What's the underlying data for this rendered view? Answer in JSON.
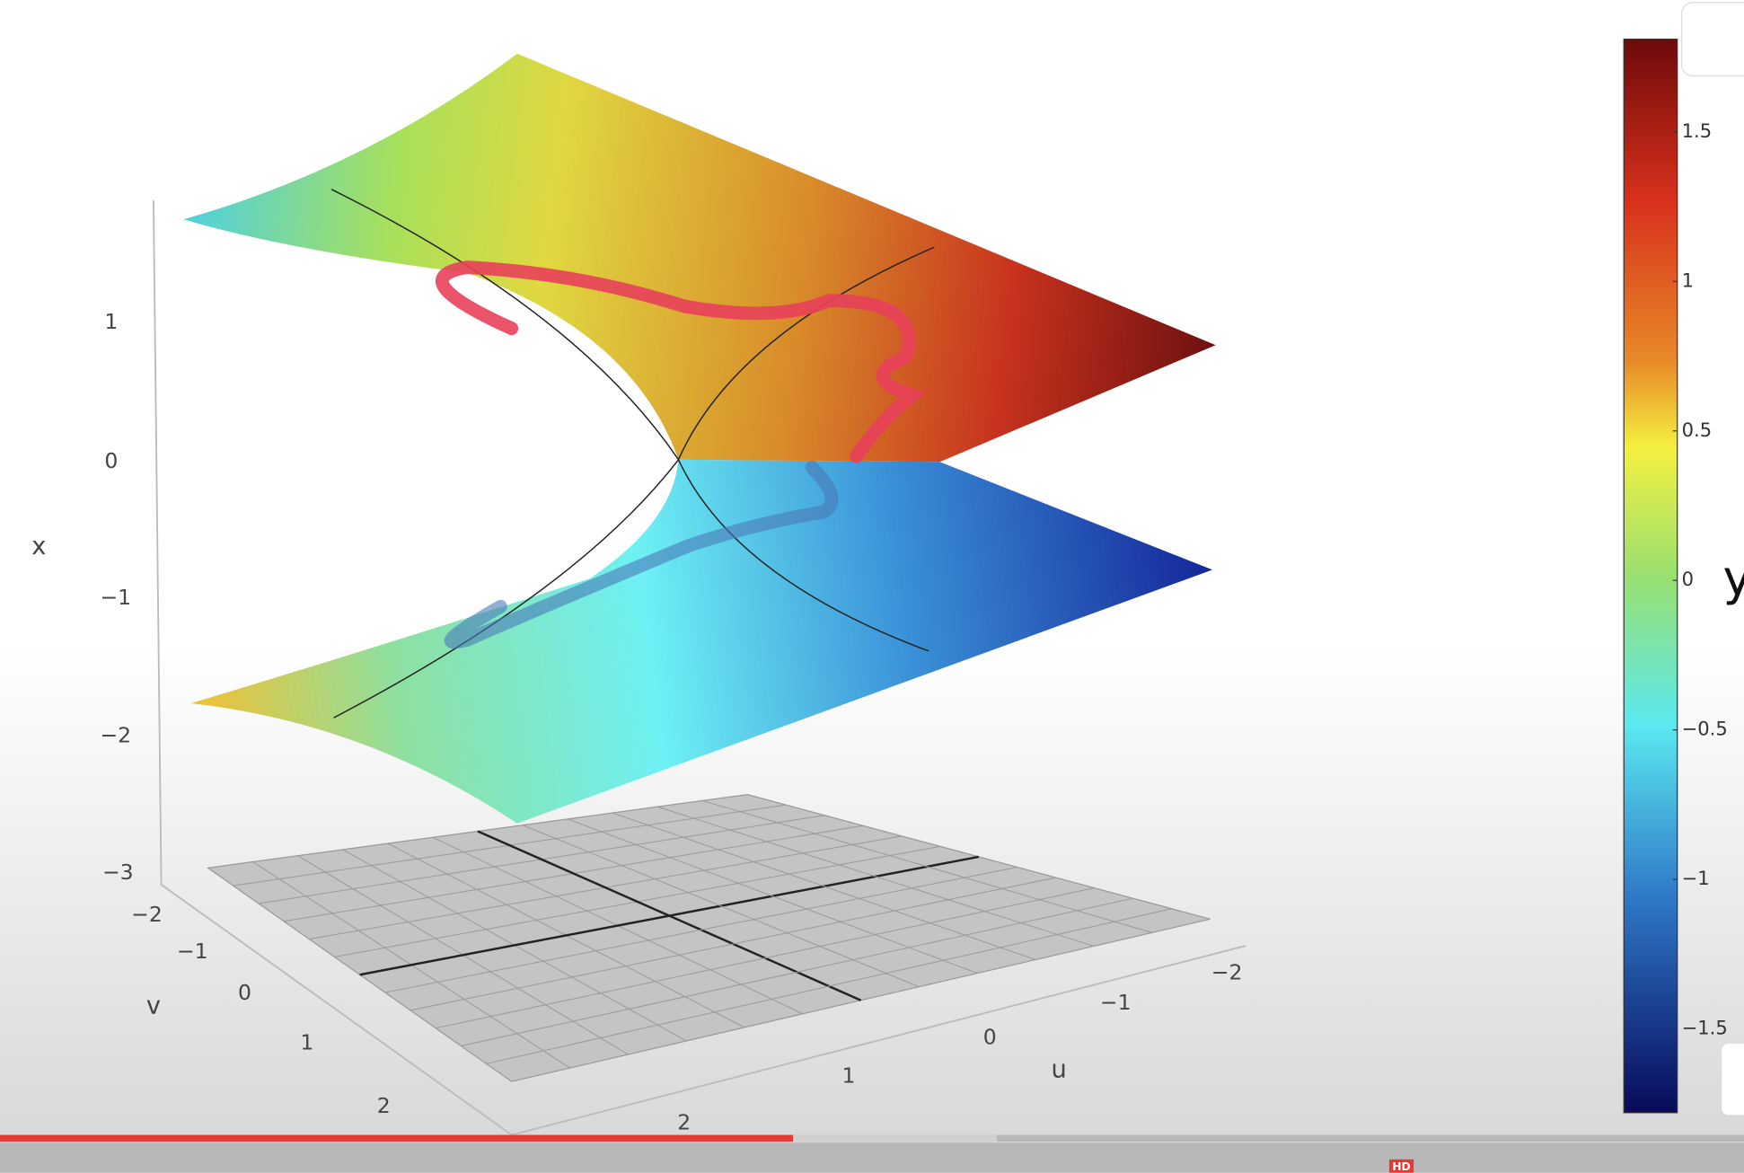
{
  "plot": {
    "axes": {
      "x": {
        "label": "x",
        "ticks": [
          "1",
          "0",
          "−1",
          "−2",
          "−3"
        ]
      },
      "v": {
        "label": "v",
        "ticks": [
          "−2",
          "−1",
          "0",
          "1",
          "2"
        ]
      },
      "u": {
        "label": "u",
        "ticks": [
          "2",
          "1",
          "0",
          "−1",
          "−2"
        ]
      }
    },
    "colorbar": {
      "label": "y",
      "clim": [
        -1.78,
        1.81
      ],
      "ticks": [
        {
          "value": 1.5,
          "label": "1.5"
        },
        1,
        {
          "value": 0.5,
          "label": "0.5"
        },
        0,
        {
          "value": -0.5,
          "label": "−0.5"
        },
        {
          "value": -1,
          "label": "−1"
        },
        {
          "value": -1.5,
          "label": "−1.5"
        }
      ]
    }
  },
  "player": {
    "hd_badge": "HD"
  }
}
